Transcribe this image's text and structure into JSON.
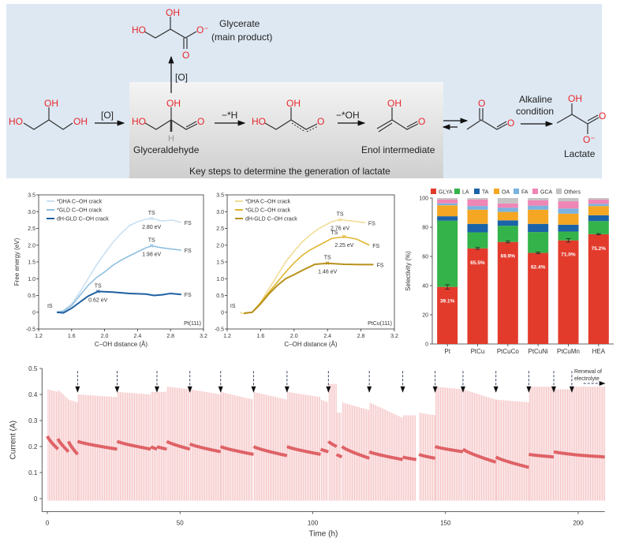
{
  "scheme": {
    "atoms": {
      "OH": "OH",
      "HO": "HO",
      "O": "O",
      "Ominus": "O⁻",
      "H": "H"
    },
    "oxidation_label": "[O]",
    "minus_h_label": "−*H",
    "minus_oh_label": "−*OH",
    "alkaline_line1": "Alkaline",
    "alkaline_line2": "condition",
    "glyceraldehyde": "Glyceraldehyde",
    "glycerate": "Glycerate",
    "main_product": "(main product)",
    "enol": "Enol intermediate",
    "lactate": "Lactate",
    "key_steps": "Key steps to determine the generation of lactate",
    "colors": {
      "background": "#dde8f3",
      "atom": "#e8262b"
    }
  },
  "chart_data": [
    {
      "type": "line",
      "xlabel": "C–OH distance (Å)",
      "ylabel": "Free energy (eV)",
      "xlim": [
        1.2,
        3.2
      ],
      "ylim": [
        -0.5,
        3.5
      ],
      "xticks": [
        "1.2",
        "1.6",
        "2.0",
        "2.4",
        "2.8",
        "3.2"
      ],
      "yticks": [
        "-0.5",
        "0",
        "0.5",
        "1.0",
        "1.5",
        "2.0",
        "2.5",
        "3.0",
        "3.5"
      ],
      "surface": "Pt(111)",
      "legend_position": "top-left",
      "IS_label": "IS",
      "TS_label": "TS",
      "FS_label": "FS",
      "series": [
        {
          "name": "*DHA C–OH crack",
          "color": "#c9e0f1",
          "ts_value": "2.80 eV",
          "ts": [
            2.57,
            2.8
          ],
          "points": [
            [
              1.42,
              0
            ],
            [
              1.5,
              0.05
            ],
            [
              1.6,
              0.25
            ],
            [
              1.7,
              0.6
            ],
            [
              1.8,
              1.0
            ],
            [
              1.9,
              1.4
            ],
            [
              2.0,
              1.75
            ],
            [
              2.1,
              2.08
            ],
            [
              2.2,
              2.35
            ],
            [
              2.3,
              2.58
            ],
            [
              2.4,
              2.7
            ],
            [
              2.5,
              2.77
            ],
            [
              2.57,
              2.8
            ],
            [
              2.7,
              2.72
            ],
            [
              2.82,
              2.75
            ],
            [
              2.93,
              2.68
            ]
          ]
        },
        {
          "name": "*GLD C–OH crack",
          "color": "#8fbfe0",
          "ts_value": "1.98 eV",
          "ts": [
            2.57,
            1.98
          ],
          "points": [
            [
              1.42,
              0
            ],
            [
              1.5,
              0.03
            ],
            [
              1.6,
              0.2
            ],
            [
              1.7,
              0.5
            ],
            [
              1.8,
              0.8
            ],
            [
              1.9,
              1.03
            ],
            [
              2.0,
              1.2
            ],
            [
              2.1,
              1.4
            ],
            [
              2.2,
              1.55
            ],
            [
              2.3,
              1.68
            ],
            [
              2.4,
              1.8
            ],
            [
              2.5,
              1.92
            ],
            [
              2.57,
              1.98
            ],
            [
              2.7,
              1.92
            ],
            [
              2.93,
              1.85
            ]
          ]
        },
        {
          "name": "dH-GLD C–OH crack",
          "color": "#1f5fa0",
          "ts_value": "0.62 eV",
          "ts": [
            1.92,
            0.62
          ],
          "points": [
            [
              1.42,
              0
            ],
            [
              1.5,
              -0.02
            ],
            [
              1.6,
              0.12
            ],
            [
              1.7,
              0.3
            ],
            [
              1.8,
              0.48
            ],
            [
              1.92,
              0.62
            ],
            [
              2.1,
              0.6
            ],
            [
              2.3,
              0.56
            ],
            [
              2.5,
              0.54
            ],
            [
              2.6,
              0.5
            ],
            [
              2.7,
              0.52
            ],
            [
              2.8,
              0.56
            ],
            [
              2.93,
              0.53
            ]
          ]
        }
      ]
    },
    {
      "type": "line",
      "xlabel": "C–OH distance (Å)",
      "ylabel": "",
      "xlim": [
        1.2,
        3.2
      ],
      "ylim": [
        -0.5,
        3.5
      ],
      "xticks": [
        "1.2",
        "1.6",
        "2.0",
        "2.4",
        "2.8",
        "3.2"
      ],
      "yticks": [
        "-0.5",
        "0",
        "0.5",
        "1.0",
        "1.5",
        "2.0",
        "2.5",
        "3.0",
        "3.5"
      ],
      "surface": "PtCu(111)",
      "legend_position": "top-left",
      "IS_label": "IS",
      "TS_label": "TS",
      "FS_label": "FS",
      "series": [
        {
          "name": "*DHA C–OH crack",
          "color": "#f2dc96",
          "ts_value": "2.76 eV",
          "ts": [
            2.55,
            2.76
          ],
          "points": [
            [
              1.35,
              0
            ],
            [
              1.4,
              -0.05
            ],
            [
              1.5,
              0
            ],
            [
              1.6,
              0.3
            ],
            [
              1.7,
              0.7
            ],
            [
              1.8,
              1.1
            ],
            [
              1.9,
              1.5
            ],
            [
              2.0,
              1.82
            ],
            [
              2.1,
              2.1
            ],
            [
              2.2,
              2.32
            ],
            [
              2.3,
              2.5
            ],
            [
              2.45,
              2.7
            ],
            [
              2.55,
              2.76
            ],
            [
              2.7,
              2.72
            ],
            [
              2.85,
              2.67
            ]
          ]
        },
        {
          "name": "*GLD C–OH crack",
          "color": "#e0b530",
          "ts_value": "2.25 eV",
          "ts": [
            2.6,
            2.25
          ],
          "points": [
            [
              1.4,
              -0.03
            ],
            [
              1.5,
              0
            ],
            [
              1.6,
              0.28
            ],
            [
              1.7,
              0.6
            ],
            [
              1.8,
              0.9
            ],
            [
              1.9,
              1.2
            ],
            [
              2.0,
              1.47
            ],
            [
              2.1,
              1.7
            ],
            [
              2.2,
              1.87
            ],
            [
              2.3,
              2.0
            ],
            [
              2.45,
              2.2
            ],
            [
              2.6,
              2.25
            ],
            [
              2.75,
              2.18
            ],
            [
              2.9,
              2.0
            ]
          ]
        },
        {
          "name": "dH-GLD C–OH crack",
          "color": "#b8901a",
          "ts_value": "1.46 eV",
          "ts": [
            2.4,
            1.46
          ],
          "points": [
            [
              1.4,
              -0.03
            ],
            [
              1.5,
              0
            ],
            [
              1.6,
              0.25
            ],
            [
              1.7,
              0.55
            ],
            [
              1.8,
              0.8
            ],
            [
              1.9,
              1.0
            ],
            [
              2.0,
              1.12
            ],
            [
              2.1,
              1.25
            ],
            [
              2.25,
              1.43
            ],
            [
              2.4,
              1.46
            ],
            [
              2.6,
              1.43
            ],
            [
              2.8,
              1.42
            ],
            [
              2.95,
              1.42
            ]
          ]
        }
      ]
    },
    {
      "type": "bar",
      "stacked": true,
      "ylabel": "Selectivity (%)",
      "ylim": [
        0,
        100
      ],
      "yticks": [
        "0",
        "20",
        "40",
        "60",
        "80",
        "100"
      ],
      "categories": [
        "Pt",
        "PtCu",
        "PtCuCo",
        "PtCuNi",
        "PtCuMn",
        "HEA"
      ],
      "legend_position": "top",
      "series": [
        {
          "name": "GLYA",
          "color": "#e23b2c",
          "values": [
            39.1,
            65.5,
            69.9,
            62.4,
            71.0,
            75.2
          ],
          "labels": [
            "39.1%",
            "65.5%",
            "69.9%",
            "62.4%",
            "71.0%",
            "75.2%"
          ],
          "errors": [
            1.5,
            0.6,
            0.6,
            0.6,
            1.2,
            0.4
          ]
        },
        {
          "name": "LA",
          "color": "#34b34a",
          "values": [
            45.4,
            11.0,
            11.1,
            14.3,
            6.0,
            9.0
          ]
        },
        {
          "name": "TA",
          "color": "#1a63a8",
          "values": [
            3.0,
            5.8,
            3.7,
            5.6,
            4.7,
            4.0
          ]
        },
        {
          "name": "OA",
          "color": "#f5a623",
          "values": [
            7.5,
            9.7,
            5.8,
            9.7,
            7.6,
            6.3
          ]
        },
        {
          "name": "FA",
          "color": "#7ab3df",
          "values": [
            1.3,
            2.5,
            2.8,
            2.8,
            3.5,
            1.5
          ]
        },
        {
          "name": "GCA",
          "color": "#ee86b6",
          "values": [
            2.7,
            4.5,
            3.0,
            3.7,
            5.0,
            3.0
          ]
        },
        {
          "name": "Others",
          "color": "#c4c4c4",
          "values": [
            1.0,
            1.0,
            3.7,
            1.5,
            2.2,
            1.0
          ]
        }
      ]
    },
    {
      "type": "line",
      "xlabel": "Time (h)",
      "ylabel": "Current (A)",
      "xlim": [
        -2,
        210
      ],
      "ylim": [
        -0.05,
        0.5
      ],
      "xticks": [
        "0",
        "50",
        "100",
        "150",
        "200"
      ],
      "yticks": [
        "0",
        "0.1",
        "0.2",
        "0.3",
        "0.4",
        "0.5"
      ],
      "color": "#e0454a",
      "annotation": "Renewal of electrolyte",
      "renewal_times": [
        11.4,
        26.3,
        41.3,
        53.7,
        65.3,
        77.7,
        90.3,
        105.9,
        121.3,
        133.9,
        146.1,
        156.6,
        169.0,
        181.4,
        190.8,
        197.6
      ],
      "segments_note_fields": [
        "t_start",
        "t_end",
        "mean_start",
        "mean_end",
        "peak_start",
        "peak_end"
      ],
      "segments": [
        [
          0,
          4,
          0.24,
          0.19,
          0.42,
          0.41
        ],
        [
          4,
          8,
          0.23,
          0.18,
          0.42,
          0.38
        ],
        [
          8,
          11.4,
          0.22,
          0.17,
          0.38,
          0.37
        ],
        [
          11.4,
          26.3,
          0.22,
          0.19,
          0.4,
          0.39
        ],
        [
          26.3,
          39,
          0.22,
          0.19,
          0.41,
          0.4
        ],
        [
          39,
          41.3,
          0.2,
          0.19,
          0.41,
          0.41
        ],
        [
          41.3,
          45,
          0.2,
          0.19,
          0.41,
          0.41
        ],
        [
          45,
          53.7,
          0.22,
          0.19,
          0.43,
          0.42
        ],
        [
          53.7,
          65.3,
          0.21,
          0.18,
          0.42,
          0.4
        ],
        [
          65.3,
          77.7,
          0.2,
          0.17,
          0.41,
          0.38
        ],
        [
          77.7,
          90.3,
          0.2,
          0.165,
          0.41,
          0.38
        ],
        [
          90.3,
          103,
          0.2,
          0.17,
          0.41,
          0.39
        ],
        [
          103,
          105.9,
          0.19,
          0.18,
          0.38,
          0.37
        ],
        [
          105.9,
          109,
          0.22,
          0.2,
          0.44,
          0.44
        ],
        [
          109,
          111,
          0.17,
          0.16,
          0.33,
          0.33
        ],
        [
          111,
          121.3,
          0.2,
          0.155,
          0.37,
          0.34
        ],
        [
          121.3,
          133.9,
          0.18,
          0.15,
          0.37,
          0.31
        ],
        [
          133.9,
          139,
          0.16,
          0.15,
          0.32,
          0.32
        ],
        [
          140,
          146.1,
          0.17,
          0.155,
          0.33,
          0.32
        ],
        [
          146.1,
          156.6,
          0.2,
          0.18,
          0.43,
          0.42
        ],
        [
          156.6,
          169,
          0.19,
          0.14,
          0.42,
          0.38
        ],
        [
          169,
          181.4,
          0.16,
          0.12,
          0.38,
          0.37
        ],
        [
          181.4,
          190.8,
          0.17,
          0.16,
          0.43,
          0.43
        ],
        [
          190.8,
          197.6,
          0.18,
          0.17,
          0.42,
          0.42
        ],
        [
          197.6,
          210,
          0.17,
          0.16,
          0.43,
          0.43
        ]
      ]
    }
  ]
}
